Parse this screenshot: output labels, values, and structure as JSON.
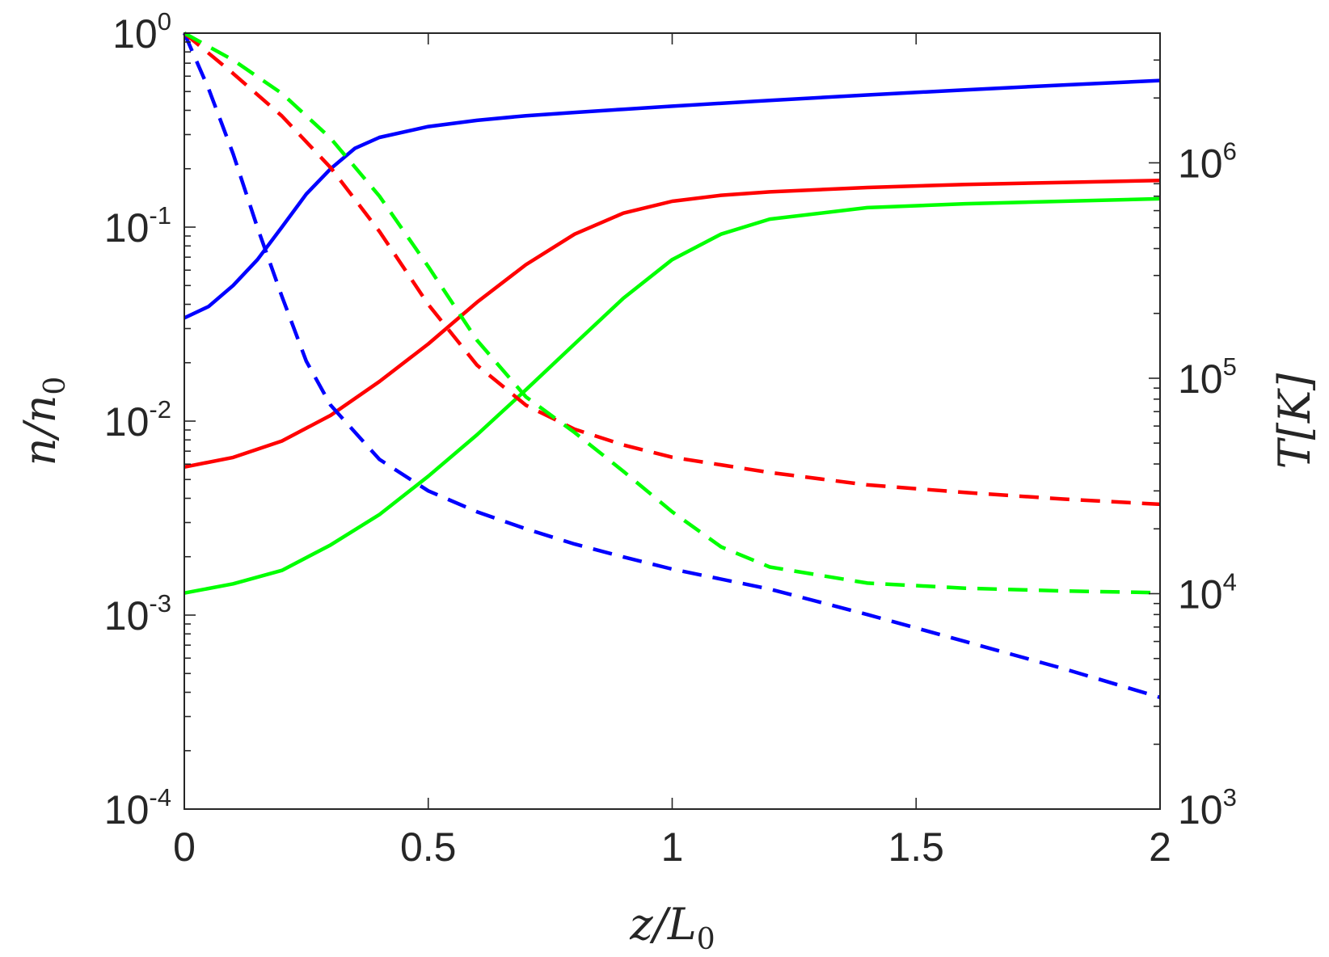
{
  "chart_data": {
    "type": "line",
    "title": "",
    "xlabel": {
      "main": "z/L",
      "sub": "0"
    },
    "ylabel": {
      "main": "n/n",
      "sub": "0"
    },
    "y2label": {
      "main": "T[K]"
    },
    "xlim": [
      0,
      2
    ],
    "ylim": [
      0.0001,
      1
    ],
    "y2lim": [
      1000,
      4000000
    ],
    "yscale": "log",
    "y2scale": "log",
    "grid": false,
    "legend": "none",
    "x_ticks": [
      0,
      0.5,
      1,
      1.5,
      2
    ],
    "x_tick_labels": [
      "0",
      "0.5",
      "1",
      "1.5",
      "2"
    ],
    "y_ticks": [
      {
        "value": 1,
        "base": "10",
        "exp": "0"
      },
      {
        "value": 0.1,
        "base": "10",
        "exp": "-1"
      },
      {
        "value": 0.01,
        "base": "10",
        "exp": "-2"
      },
      {
        "value": 0.001,
        "base": "10",
        "exp": "-3"
      },
      {
        "value": 0.0001,
        "base": "10",
        "exp": "-4"
      }
    ],
    "y2_ticks": [
      {
        "value": 1000,
        "base": "10",
        "exp": "3"
      },
      {
        "value": 10000,
        "base": "10",
        "exp": "4"
      },
      {
        "value": 100000,
        "base": "10",
        "exp": "5"
      },
      {
        "value": 1000000,
        "base": "10",
        "exp": "6"
      }
    ],
    "series": [
      {
        "axis": "left",
        "style": "solid",
        "color": "#0000ff",
        "x": [
          0,
          0.05,
          0.1,
          0.15,
          0.2,
          0.25,
          0.3,
          0.35,
          0.4,
          0.5,
          0.6,
          0.7,
          0.8,
          0.9,
          1.0,
          1.2,
          1.4,
          1.6,
          1.8,
          2.0
        ],
        "y": [
          0.034,
          0.039,
          0.05,
          0.068,
          0.1,
          0.148,
          0.2,
          0.255,
          0.29,
          0.33,
          0.355,
          0.375,
          0.39,
          0.405,
          0.42,
          0.45,
          0.48,
          0.51,
          0.54,
          0.57
        ]
      },
      {
        "axis": "left",
        "style": "solid",
        "color": "#ff0000",
        "x": [
          0,
          0.1,
          0.2,
          0.3,
          0.4,
          0.5,
          0.6,
          0.7,
          0.8,
          0.9,
          1.0,
          1.1,
          1.2,
          1.4,
          1.6,
          1.8,
          2.0
        ],
        "y": [
          0.0058,
          0.0065,
          0.0079,
          0.0107,
          0.016,
          0.025,
          0.041,
          0.064,
          0.092,
          0.118,
          0.136,
          0.146,
          0.152,
          0.16,
          0.166,
          0.17,
          0.174
        ]
      },
      {
        "axis": "left",
        "style": "solid",
        "color": "#00ff00",
        "x": [
          0,
          0.1,
          0.2,
          0.3,
          0.4,
          0.5,
          0.6,
          0.7,
          0.8,
          0.9,
          1.0,
          1.1,
          1.2,
          1.4,
          1.6,
          1.8,
          2.0
        ],
        "y": [
          0.0013,
          0.00145,
          0.0017,
          0.0023,
          0.0033,
          0.0052,
          0.0085,
          0.0145,
          0.025,
          0.043,
          0.068,
          0.092,
          0.11,
          0.126,
          0.132,
          0.136,
          0.14
        ]
      },
      {
        "axis": "right",
        "style": "dashed",
        "color": "#0000ff",
        "x": [
          0,
          0.05,
          0.1,
          0.15,
          0.2,
          0.25,
          0.3,
          0.4,
          0.5,
          0.6,
          0.7,
          0.8,
          0.9,
          1.0,
          1.2,
          1.4,
          1.6,
          1.8,
          2.0
        ],
        "y": [
          4000000,
          2200000,
          1100000,
          500000,
          240000,
          120000,
          75000,
          42000,
          30000,
          24000,
          20000,
          17000,
          14800,
          13000,
          10500,
          8000,
          6000,
          4500,
          3300
        ]
      },
      {
        "axis": "right",
        "style": "dashed",
        "color": "#ff0000",
        "x": [
          0,
          0.1,
          0.2,
          0.3,
          0.4,
          0.5,
          0.6,
          0.7,
          0.8,
          0.9,
          1.0,
          1.2,
          1.4,
          1.6,
          1.8,
          2.0
        ],
        "y": [
          4000000,
          2600000,
          1650000,
          950000,
          480000,
          220000,
          115000,
          75000,
          58000,
          49000,
          43000,
          36500,
          32000,
          29500,
          27500,
          26000
        ]
      },
      {
        "axis": "right",
        "style": "dashed",
        "color": "#00ff00",
        "x": [
          0,
          0.1,
          0.2,
          0.3,
          0.4,
          0.5,
          0.6,
          0.7,
          0.8,
          0.9,
          1.0,
          1.1,
          1.2,
          1.4,
          1.6,
          1.8,
          2.0
        ],
        "y": [
          4000000,
          3000000,
          2100000,
          1300000,
          700000,
          330000,
          150000,
          82000,
          56000,
          37000,
          24000,
          16500,
          13300,
          11200,
          10600,
          10300,
          10100
        ]
      }
    ]
  }
}
